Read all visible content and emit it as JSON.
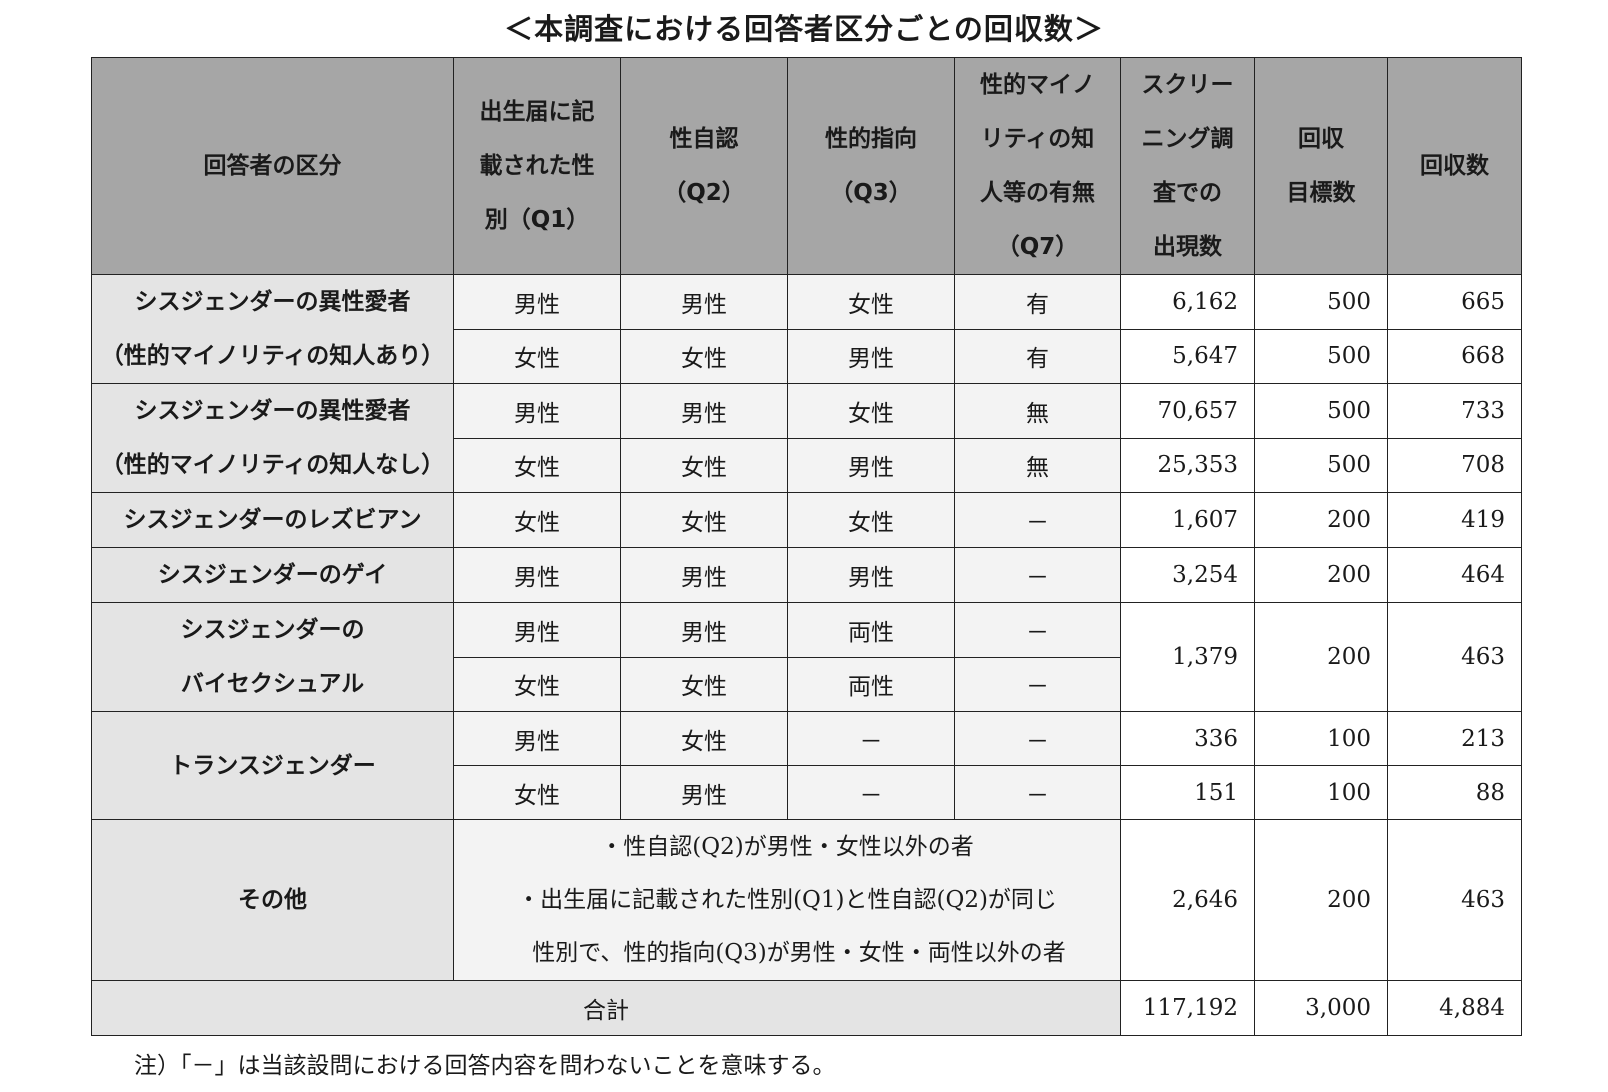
{
  "title": "＜本調査における回答者区分ごとの回収数＞",
  "header": {
    "category": "回答者の区分",
    "q1_l1": "出生届に記",
    "q1_l2": "載された性",
    "q1_l3": "別（Q1）",
    "q2_l1": "性自認",
    "q2_l2": "（Q2）",
    "q3_l1": "性的指向",
    "q3_l2": "（Q3）",
    "q7_l1": "性的マイノ",
    "q7_l2": "リティの知",
    "q7_l3": "人等の有無",
    "q7_l4": "（Q7）",
    "scr_l1": "スクリー",
    "scr_l2": "ニング調",
    "scr_l3": "査での",
    "scr_l4": "出現数",
    "target_l1": "回収",
    "target_l2": "目標数",
    "collected": "回収数"
  },
  "groups": [
    {
      "l1": "シスジェンダーの異性愛者",
      "l2": "（性的マイノリティの知人あり）"
    },
    {
      "l1": "シスジェンダーの異性愛者",
      "l2": "（性的マイノリティの知人なし）"
    },
    {
      "l1": "シスジェンダーのレズビアン"
    },
    {
      "l1": "シスジェンダーのゲイ"
    },
    {
      "l1": "シスジェンダーの",
      "l2": "バイセクシュアル"
    },
    {
      "l1": "トランスジェンダー"
    },
    {
      "l1": "その他"
    }
  ],
  "rows": [
    {
      "q1": "男性",
      "q2": "男性",
      "q3": "女性",
      "q7": "有",
      "screening": "6,162",
      "target": "500",
      "collected": "665"
    },
    {
      "q1": "女性",
      "q2": "女性",
      "q3": "男性",
      "q7": "有",
      "screening": "5,647",
      "target": "500",
      "collected": "668"
    },
    {
      "q1": "男性",
      "q2": "男性",
      "q3": "女性",
      "q7": "無",
      "screening": "70,657",
      "target": "500",
      "collected": "733"
    },
    {
      "q1": "女性",
      "q2": "女性",
      "q3": "男性",
      "q7": "無",
      "screening": "25,353",
      "target": "500",
      "collected": "708"
    },
    {
      "q1": "女性",
      "q2": "女性",
      "q3": "女性",
      "q7": "－",
      "screening": "1,607",
      "target": "200",
      "collected": "419"
    },
    {
      "q1": "男性",
      "q2": "男性",
      "q3": "男性",
      "q7": "－",
      "screening": "3,254",
      "target": "200",
      "collected": "464"
    },
    {
      "q1": "男性",
      "q2": "男性",
      "q3": "両性",
      "q7": "－",
      "screening": "1,379",
      "target": "200",
      "collected": "463"
    },
    {
      "q1": "女性",
      "q2": "女性",
      "q3": "両性",
      "q7": "－"
    },
    {
      "q1": "男性",
      "q2": "女性",
      "q3": "－",
      "q7": "－",
      "screening": "336",
      "target": "100",
      "collected": "213"
    },
    {
      "q1": "女性",
      "q2": "男性",
      "q3": "－",
      "q7": "－",
      "screening": "151",
      "target": "100",
      "collected": "88"
    }
  ],
  "other": {
    "line1": "・性自認(Q2)が男性・女性以外の者",
    "line2": "・出生届に記載された性別(Q1)と性自認(Q2)が同じ",
    "line3": "性別で、性的指向(Q3)が男性・女性・両性以外の者",
    "screening": "2,646",
    "target": "200",
    "collected": "463"
  },
  "total": {
    "label": "合計",
    "screening": "117,192",
    "target": "3,000",
    "collected": "4,884"
  },
  "note": "注）「－」は当該設問における回答内容を問わないことを意味する。"
}
